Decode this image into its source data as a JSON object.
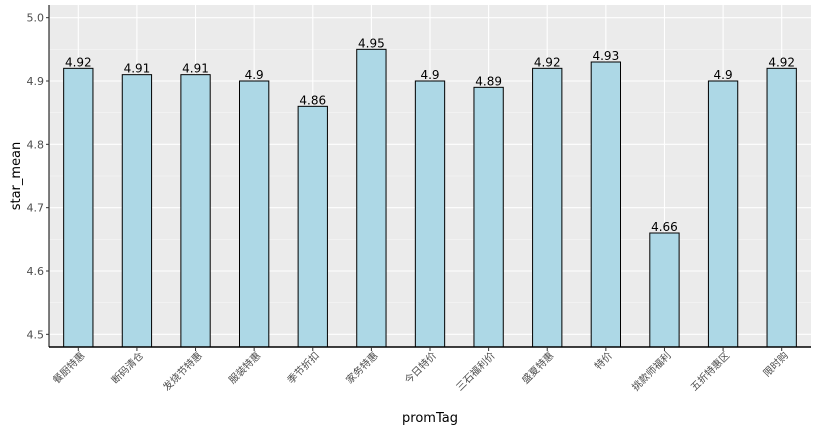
{
  "chart_data": {
    "type": "bar",
    "xlabel": "promTag",
    "ylabel": "star_mean",
    "categories": [
      "餐厨特惠",
      "断码清仓",
      "发烧节特惠",
      "服装特惠",
      "季节折扣",
      "家务特惠",
      "今日特价",
      "三石福利价",
      "盛夏特惠",
      "特价",
      "挑款师福利",
      "五折特惠区",
      "限时购"
    ],
    "values": [
      4.92,
      4.91,
      4.91,
      4.9,
      4.86,
      4.95,
      4.9,
      4.89,
      4.92,
      4.93,
      4.66,
      4.9,
      4.92
    ],
    "data_labels": [
      "4.92",
      "4.91",
      "4.91",
      "4.9",
      "4.86",
      "4.95",
      "4.9",
      "4.89",
      "4.92",
      "4.93",
      "4.66",
      "4.9",
      "4.92"
    ],
    "ylim": [
      4.48,
      5.02
    ],
    "yticks": [
      4.5,
      4.6,
      4.7,
      4.8,
      4.9,
      5.0
    ],
    "ytick_labels": [
      "4.5",
      "4.6",
      "4.7",
      "4.8",
      "4.9",
      "5.0"
    ],
    "grid": true,
    "colors": {
      "bar_fill": "#add8e6",
      "bar_stroke": "#000000",
      "panel_background": "#ebebeb",
      "grid_major": "#ffffff",
      "grid_minor": "#f5f5f5"
    }
  }
}
